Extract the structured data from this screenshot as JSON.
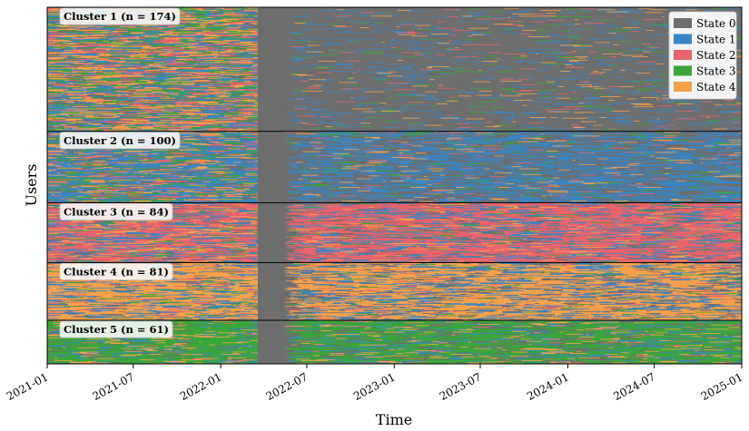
{
  "chart_data": {
    "type": "heatmap",
    "xlabel": "Time",
    "ylabel": "Users",
    "x_range": [
      "2021-01-01",
      "2025-01-01"
    ],
    "x_ticks": [
      "2021-01",
      "2021-07",
      "2022-01",
      "2022-07",
      "2023-01",
      "2023-07",
      "2024-01",
      "2024-07",
      "2025-01"
    ],
    "legend_position": "top-right",
    "legend": [
      {
        "label": "State 0",
        "color": "#6e6e6e"
      },
      {
        "label": "State 1",
        "color": "#3a86c4"
      },
      {
        "label": "State 2",
        "color": "#e8636a"
      },
      {
        "label": "State 3",
        "color": "#3aa63a"
      },
      {
        "label": "State 4",
        "color": "#f5a04a"
      }
    ],
    "gap_period": [
      "2022-03-20",
      "2022-05-15"
    ],
    "clusters": [
      {
        "label": "Cluster 1  (n = 174)",
        "n": 174,
        "dominant_state": 0
      },
      {
        "label": "Cluster 2  (n = 100)",
        "n": 100,
        "dominant_state": 1
      },
      {
        "label": "Cluster 3  (n = 84)",
        "n": 84,
        "dominant_state": 2
      },
      {
        "label": "Cluster 4  (n = 81)",
        "n": 81,
        "dominant_state": 4
      },
      {
        "label": "Cluster 5  (n = 61)",
        "n": 61,
        "dominant_state": 3
      }
    ]
  }
}
